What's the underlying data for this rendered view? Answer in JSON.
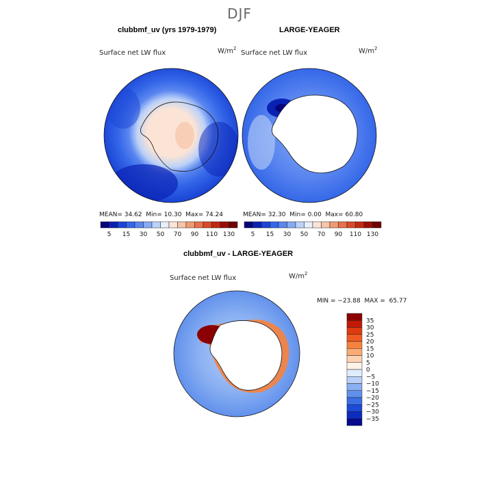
{
  "suptitle": "DJF",
  "chart_data": [
    {
      "type": "heatmap",
      "title": "clubbmf_uv (yrs 1979-1979)",
      "variable_label": "Surface net LW flux",
      "units_label": "W/m",
      "units_exp": "2",
      "stats": {
        "mean_label": "MEAN=",
        "mean": "34.62",
        "min_label": "Min=",
        "min": "10.30",
        "max_label": "Max=",
        "max": "74.24"
      },
      "colorbar": {
        "ticks": [
          "5",
          "15",
          "30",
          "50",
          "70",
          "90",
          "110",
          "130"
        ],
        "colors": [
          "#08047a",
          "#0a22b4",
          "#1b45d6",
          "#3366e8",
          "#5a86f0",
          "#86aaf4",
          "#bcd2f8",
          "#e7eefc",
          "#fbe4d6",
          "#f6c4a8",
          "#f09a74",
          "#e8704c",
          "#d94a2a",
          "#c22a12",
          "#9a0e08",
          "#700202"
        ]
      }
    },
    {
      "type": "heatmap",
      "title": "LARGE-YEAGER",
      "variable_label": "Surface net LW flux",
      "units_label": "W/m",
      "units_exp": "2",
      "stats": {
        "mean_label": "MEAN=",
        "mean": "32.30",
        "min_label": "Min=",
        "min": "0.00",
        "max_label": "Max=",
        "max": "60.80"
      },
      "colorbar": {
        "ticks": [
          "5",
          "15",
          "30",
          "50",
          "70",
          "90",
          "110",
          "130"
        ],
        "colors": [
          "#08047a",
          "#0a22b4",
          "#1b45d6",
          "#3366e8",
          "#5a86f0",
          "#86aaf4",
          "#bcd2f8",
          "#e7eefc",
          "#fbe4d6",
          "#f6c4a8",
          "#f09a74",
          "#e8704c",
          "#d94a2a",
          "#c22a12",
          "#9a0e08",
          "#700202"
        ]
      }
    },
    {
      "type": "heatmap",
      "title": "clubbmf_uv - LARGE-YEAGER",
      "variable_label": "Surface net LW flux",
      "units_label": "W/m",
      "units_exp": "2",
      "minmax": "MIN = −23.88  MAX =  65.77",
      "colorbar": {
        "ticks": [
          "35",
          "30",
          "25",
          "20",
          "15",
          "10",
          "5",
          "0",
          "−5",
          "−10",
          "−15",
          "−20",
          "−25",
          "−30",
          "−35"
        ],
        "colors": [
          "#8b0000",
          "#c21a06",
          "#e03a10",
          "#f05a22",
          "#f7823e",
          "#fbab74",
          "#fdd2b4",
          "#fdf2e6",
          "#e0ecfc",
          "#b8d0f8",
          "#8ab0f2",
          "#6090ec",
          "#3a6ee4",
          "#1e4ad8",
          "#0c2cc0",
          "#060a8c"
        ]
      }
    }
  ]
}
